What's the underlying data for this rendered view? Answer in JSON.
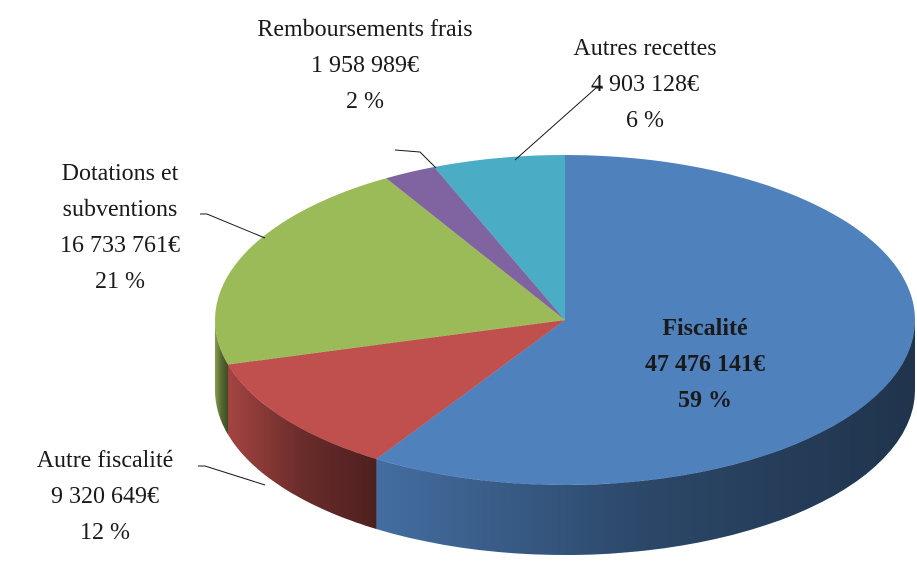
{
  "chart_data": {
    "type": "pie3d",
    "categories": [
      "Fiscalité",
      "Autre fiscalité",
      "Dotations et subventions",
      "Remboursements frais",
      "Autres recettes"
    ],
    "values": [
      47476141,
      9320649,
      16733761,
      1958989,
      4903128
    ],
    "value_labels": [
      "47 476 141€",
      "9 320 649€",
      "16 733 761€",
      "1 958 989€",
      "4 903 128€"
    ],
    "percent_labels": [
      "59 %",
      "12 %",
      "21 %",
      "2 %",
      "6 %"
    ],
    "colors": [
      "#4f81bd",
      "#c0504d",
      "#9bbb59",
      "#8064a2",
      "#4bacc6"
    ]
  }
}
